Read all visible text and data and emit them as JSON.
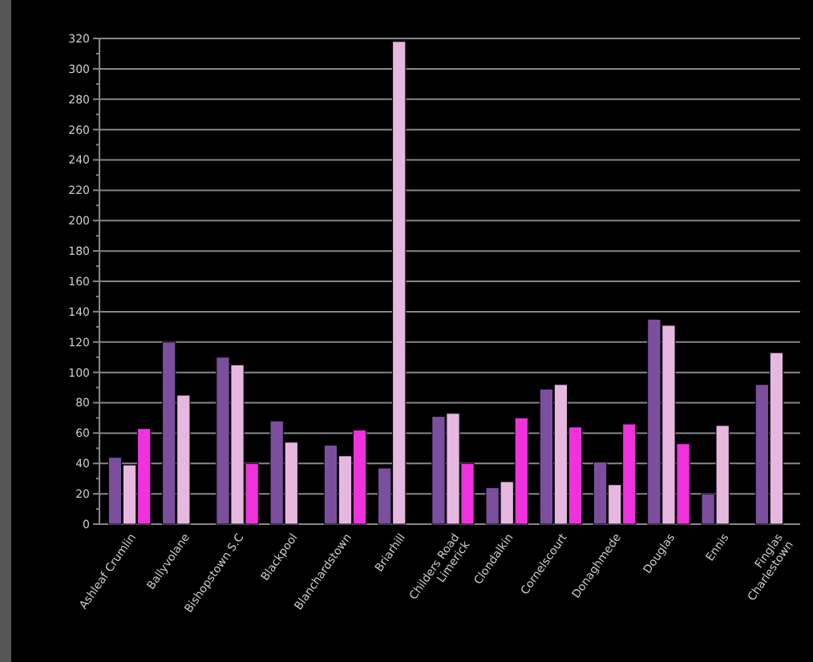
{
  "chart_data": {
    "type": "bar",
    "categories": [
      "Ashleaf Crumlin",
      "Ballyvolane",
      "Bishopstown S.C",
      "Blackpool",
      "Blanchardstown",
      "Briarhill",
      "Childers Road Limerick",
      "Clondalkin",
      "Cornelscourt",
      "Donaghmede",
      "Douglas",
      "Ennis",
      "Finglas Charlestown"
    ],
    "series": [
      {
        "color": "#7b4f9d",
        "values": [
          44,
          120,
          110,
          68,
          52,
          37,
          71,
          24,
          89,
          41,
          135,
          20,
          92
        ]
      },
      {
        "color": "#e6b8e0",
        "values": [
          39,
          85,
          105,
          54,
          45,
          318,
          73,
          28,
          92,
          26,
          131,
          65,
          113
        ]
      },
      {
        "color": "#ee33dd",
        "values": [
          63,
          null,
          40,
          null,
          62,
          null,
          40,
          70,
          64,
          66,
          53,
          null,
          null
        ]
      }
    ],
    "ylim": [
      0,
      320
    ],
    "yticks": [
      0,
      20,
      40,
      60,
      80,
      100,
      120,
      140,
      160,
      180,
      200,
      220,
      240,
      260,
      280,
      300,
      320
    ],
    "grid": "y"
  }
}
